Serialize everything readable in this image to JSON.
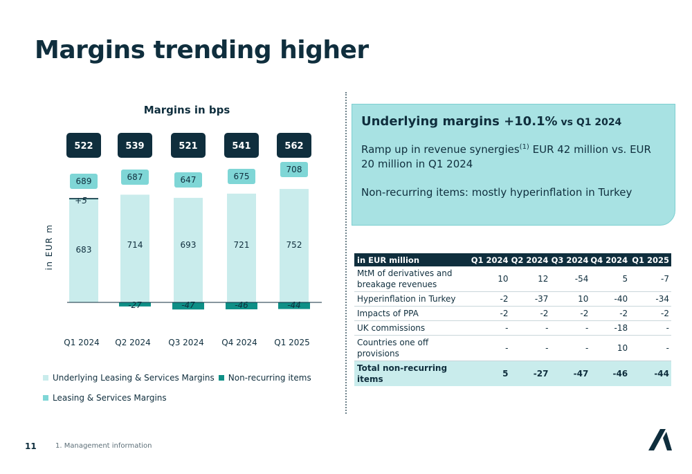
{
  "page": {
    "title": "Margins trending higher",
    "page_number": "11",
    "footnote": "1.    Management information"
  },
  "callout": {
    "headline_main": "Underlying margins +10.1%",
    "headline_small": " vs Q1 2024",
    "p1_before_sup": "Ramp up in revenue synergies",
    "p1_sup": "(1)",
    "p1_after_sup": " EUR 42 million vs. EUR 20 million in Q1 2024",
    "p2": "Non-recurring items: mostly hyperinflation in Turkey"
  },
  "table": {
    "header": [
      "in EUR million",
      "Q1 2024",
      "Q2 2024",
      "Q3 2024",
      "Q4 2024",
      "Q1 2025"
    ],
    "rows": [
      {
        "label": "MtM of derivatives and breakage revenues",
        "values": [
          "10",
          "12",
          "-54",
          "5",
          "-7"
        ]
      },
      {
        "label": "Hyperinflation in Turkey",
        "values": [
          "-2",
          "-37",
          "10",
          "-40",
          "-34"
        ]
      },
      {
        "label": "Impacts of PPA",
        "values": [
          "-2",
          "-2",
          "-2",
          "-2",
          "-2"
        ]
      },
      {
        "label": "UK commissions",
        "values": [
          "-",
          "-",
          "-",
          "-18",
          "-"
        ]
      },
      {
        "label": "Countries one off provisions",
        "values": [
          "-",
          "-",
          "-",
          "10",
          "-"
        ]
      }
    ],
    "total": {
      "label": "Total non-recurring items",
      "values": [
        "5",
        "-27",
        "-47",
        "-46",
        "-44"
      ]
    }
  },
  "chart_data": {
    "type": "bar",
    "title": "Margins in bps",
    "ylabel": "in EUR m",
    "categories": [
      "Q1 2024",
      "Q2 2024",
      "Q3 2024",
      "Q4 2024",
      "Q1 2025"
    ],
    "margins_bps": [
      522,
      539,
      521,
      541,
      562
    ],
    "series": [
      {
        "name": "Underlying Leasing & Services Margins",
        "values": [
          683,
          714,
          693,
          721,
          752
        ],
        "color": "#c9ecec"
      },
      {
        "name": "Non-recurring items",
        "values": [
          5,
          -27,
          -47,
          -46,
          -44
        ],
        "labels": [
          "+5",
          "-27",
          "-47",
          "-46",
          "-44"
        ],
        "color": "#0e8f86"
      },
      {
        "name": "Leasing & Services Margins",
        "values": [
          689,
          687,
          647,
          675,
          708
        ],
        "color": "#7fd6d6"
      }
    ],
    "ylim": [
      -60,
      780
    ],
    "grid": false,
    "legend": "bottom-left"
  },
  "colors": {
    "navy": "#0f2e3d",
    "underlying": "#c9ecec",
    "nonrecurring": "#0e8f86",
    "total": "#7fd6d6"
  }
}
